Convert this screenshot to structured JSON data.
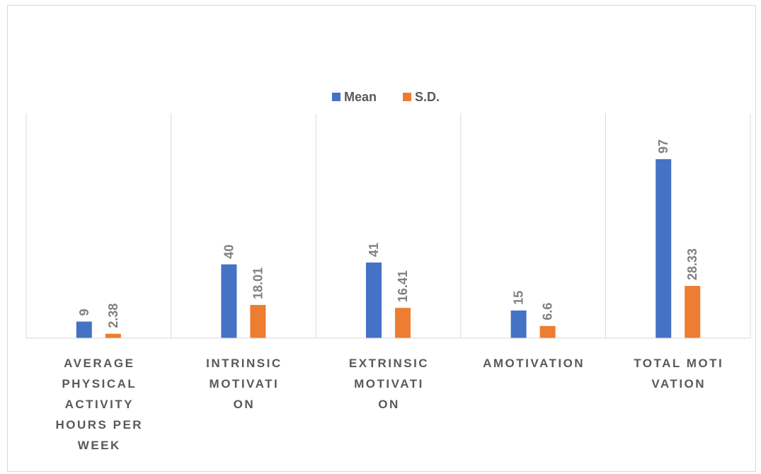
{
  "chart_data": {
    "type": "bar",
    "categories": [
      "AVERAGE PHYSICAL ACTIVITY HOURS PER WEEK",
      "INTRINSIC MOTIVATION",
      "EXTRINSIC MOTIVATION",
      "AMOTIVATION",
      "TOTAL MOTIVATION"
    ],
    "category_label_lines": [
      [
        "AVERAGE",
        "PHYSICAL",
        "ACTIVITY",
        "HOURS PER",
        "WEEK"
      ],
      [
        "INTRINSIC",
        "MOTIVATI",
        "ON"
      ],
      [
        "EXTRINSIC",
        "MOTIVATI",
        "ON"
      ],
      [
        "AMOTIVATION"
      ],
      [
        "TOTAL MOTI",
        "VATION"
      ]
    ],
    "series": [
      {
        "name": "Mean",
        "values": [
          9,
          40,
          41,
          15,
          97
        ],
        "labels": [
          "9",
          "40",
          "41",
          "15",
          "97"
        ],
        "color": "#4472c4"
      },
      {
        "name": "S.D.",
        "values": [
          2.38,
          18.01,
          16.41,
          6.6,
          28.33
        ],
        "labels": [
          "2.38",
          "18.01",
          "16.41",
          "6.6",
          "28.33"
        ],
        "color": "#ed7d31"
      }
    ],
    "ylim": [
      0,
      110
    ],
    "grid": "vertical",
    "legend_position": "top",
    "title": "",
    "xlabel": "",
    "ylabel": ""
  }
}
